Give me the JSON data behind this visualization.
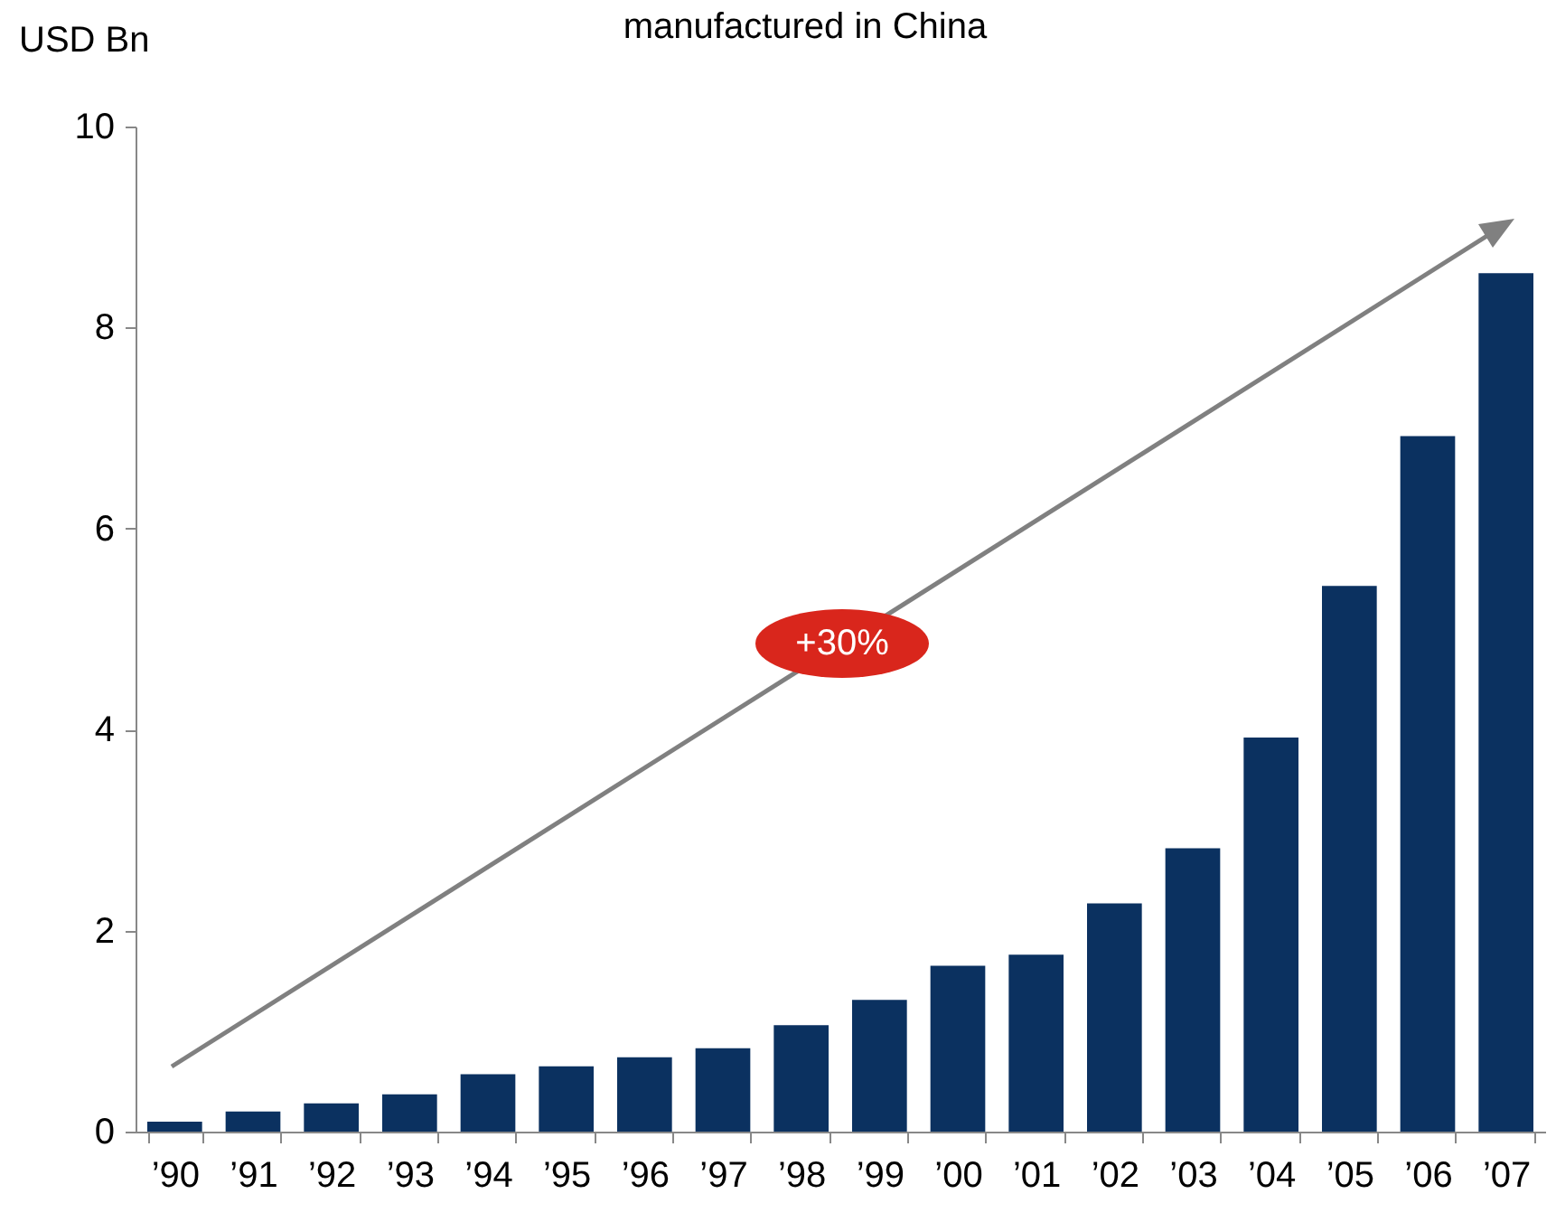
{
  "chart_data": {
    "type": "bar",
    "title": "manufactured in China",
    "ylabel": "USD Bn",
    "categories": [
      "’90",
      "’91",
      "’92",
      "’93",
      "’94",
      "’95",
      "’96",
      "’97",
      "’98",
      "’99",
      "’00",
      "’01",
      "’02",
      "’03",
      "’04",
      "’05",
      "’06",
      "’07"
    ],
    "values": [
      0.1,
      0.2,
      0.28,
      0.37,
      0.57,
      0.65,
      0.74,
      0.83,
      1.06,
      1.31,
      1.65,
      1.76,
      2.27,
      2.82,
      3.92,
      5.43,
      6.92,
      8.54
    ],
    "color": "#0b3160",
    "ylim": [
      0,
      10
    ],
    "yticks": [
      0,
      2,
      4,
      6,
      8,
      10
    ],
    "grid": false,
    "annotations": [
      "+30%"
    ]
  }
}
